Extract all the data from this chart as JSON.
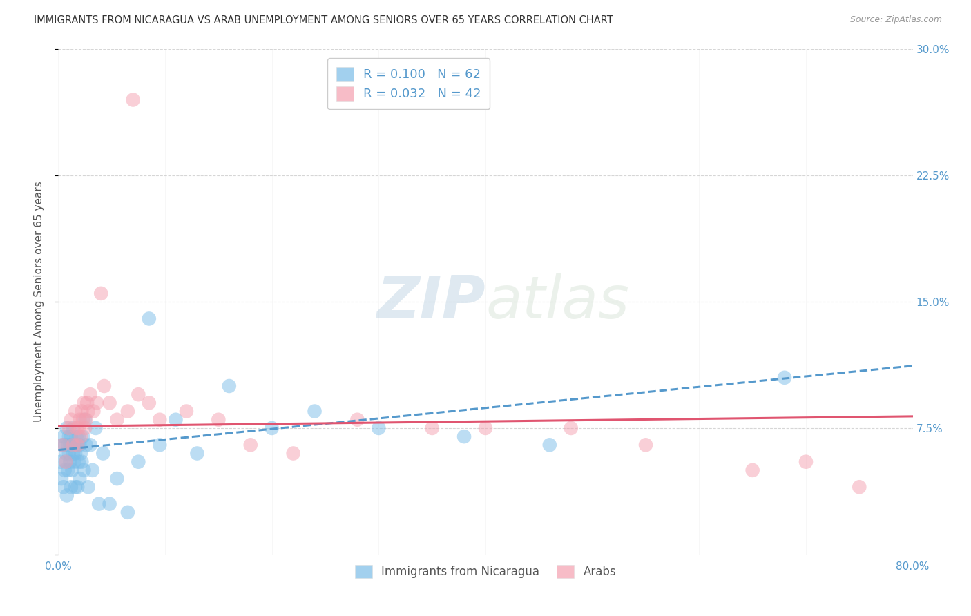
{
  "title": "IMMIGRANTS FROM NICARAGUA VS ARAB UNEMPLOYMENT AMONG SENIORS OVER 65 YEARS CORRELATION CHART",
  "source": "Source: ZipAtlas.com",
  "ylabel": "Unemployment Among Seniors over 65 years",
  "xlim": [
    0.0,
    0.8
  ],
  "ylim": [
    0.0,
    0.3
  ],
  "yticks": [
    0.0,
    0.075,
    0.15,
    0.225,
    0.3
  ],
  "ytick_labels_right": [
    "",
    "7.5%",
    "15.0%",
    "22.5%",
    "30.0%"
  ],
  "xticks": [
    0.0,
    0.1,
    0.2,
    0.3,
    0.4,
    0.5,
    0.6,
    0.7,
    0.8
  ],
  "xtick_labels": [
    "0.0%",
    "",
    "",
    "",
    "",
    "",
    "",
    "",
    "80.0%"
  ],
  "blue_color": "#7bbde8",
  "pink_color": "#f4a0b0",
  "blue_line_color": "#5599cc",
  "pink_line_color": "#e05570",
  "watermark_zip": "ZIP",
  "watermark_atlas": "atlas",
  "legend_label1": "R = 0.100   N = 62",
  "legend_label2": "R = 0.032   N = 42",
  "bottom_legend_label1": "Immigrants from Nicaragua",
  "bottom_legend_label2": "Arabs",
  "background_color": "#ffffff",
  "grid_color": "#cccccc",
  "title_color": "#333333",
  "axis_label_color": "#555555",
  "tick_label_color": "#5599cc",
  "blue_scatter_x": [
    0.002,
    0.003,
    0.004,
    0.005,
    0.005,
    0.006,
    0.006,
    0.007,
    0.007,
    0.008,
    0.008,
    0.009,
    0.009,
    0.01,
    0.01,
    0.011,
    0.011,
    0.012,
    0.012,
    0.013,
    0.013,
    0.014,
    0.014,
    0.015,
    0.015,
    0.016,
    0.016,
    0.017,
    0.017,
    0.018,
    0.018,
    0.019,
    0.019,
    0.02,
    0.02,
    0.021,
    0.022,
    0.023,
    0.024,
    0.025,
    0.026,
    0.028,
    0.03,
    0.032,
    0.035,
    0.038,
    0.042,
    0.048,
    0.055,
    0.065,
    0.075,
    0.085,
    0.095,
    0.11,
    0.13,
    0.16,
    0.2,
    0.24,
    0.3,
    0.38,
    0.46,
    0.68
  ],
  "blue_scatter_y": [
    0.055,
    0.045,
    0.065,
    0.07,
    0.04,
    0.065,
    0.05,
    0.06,
    0.055,
    0.035,
    0.075,
    0.05,
    0.065,
    0.06,
    0.07,
    0.055,
    0.065,
    0.04,
    0.07,
    0.05,
    0.065,
    0.06,
    0.075,
    0.055,
    0.065,
    0.04,
    0.06,
    0.065,
    0.07,
    0.04,
    0.065,
    0.055,
    0.07,
    0.045,
    0.065,
    0.06,
    0.055,
    0.07,
    0.05,
    0.08,
    0.065,
    0.04,
    0.065,
    0.05,
    0.075,
    0.03,
    0.06,
    0.03,
    0.045,
    0.025,
    0.055,
    0.14,
    0.065,
    0.08,
    0.06,
    0.1,
    0.075,
    0.085,
    0.075,
    0.07,
    0.065,
    0.105
  ],
  "pink_scatter_x": [
    0.004,
    0.007,
    0.01,
    0.012,
    0.014,
    0.016,
    0.017,
    0.018,
    0.019,
    0.02,
    0.021,
    0.022,
    0.023,
    0.024,
    0.025,
    0.026,
    0.027,
    0.028,
    0.03,
    0.033,
    0.036,
    0.04,
    0.043,
    0.048,
    0.055,
    0.065,
    0.07,
    0.075,
    0.085,
    0.095,
    0.12,
    0.15,
    0.18,
    0.22,
    0.28,
    0.35,
    0.4,
    0.48,
    0.55,
    0.65,
    0.7,
    0.75
  ],
  "pink_scatter_y": [
    0.065,
    0.055,
    0.075,
    0.08,
    0.065,
    0.085,
    0.075,
    0.065,
    0.075,
    0.08,
    0.07,
    0.085,
    0.08,
    0.09,
    0.075,
    0.08,
    0.09,
    0.085,
    0.095,
    0.085,
    0.09,
    0.155,
    0.1,
    0.09,
    0.08,
    0.085,
    0.27,
    0.095,
    0.09,
    0.08,
    0.085,
    0.08,
    0.065,
    0.06,
    0.08,
    0.075,
    0.075,
    0.075,
    0.065,
    0.05,
    0.055,
    0.04
  ],
  "blue_trend_x": [
    0.0,
    0.8
  ],
  "blue_trend_y": [
    0.062,
    0.112
  ],
  "pink_trend_x": [
    0.0,
    0.8
  ],
  "pink_trend_y": [
    0.076,
    0.082
  ]
}
